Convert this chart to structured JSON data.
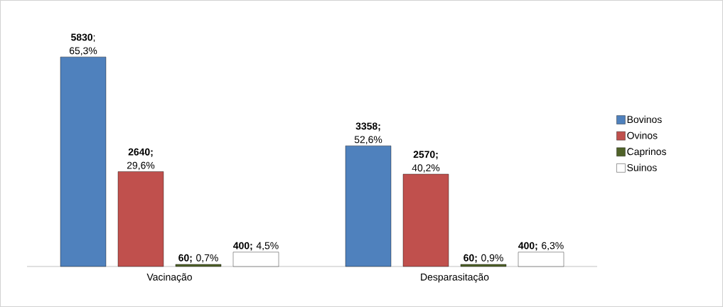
{
  "chart_data": {
    "type": "bar",
    "categories": [
      "Vacinação",
      "Desparasitação"
    ],
    "series": [
      {
        "name": "Bovinos",
        "color": "#4f81bd",
        "values": [
          5830,
          3358
        ],
        "value_labels": [
          "**5830**; 65,3%",
          "**3358;** 52,6%"
        ]
      },
      {
        "name": "Ovinos",
        "color": "#c0504d",
        "values": [
          2640,
          2570
        ],
        "value_labels": [
          "**2640;** 29,6%",
          "**2570;** 40,2%"
        ]
      },
      {
        "name": "Caprinos",
        "color": "#4f6228",
        "values": [
          60,
          60
        ],
        "value_labels": [
          "**60;** 0,7%",
          "**60;** 0,9%"
        ]
      },
      {
        "name": "Suinos",
        "color": "#ffffff",
        "values": [
          400,
          400
        ],
        "value_labels": [
          "**400;** 4,5%",
          "**400;** 6,3%"
        ]
      }
    ],
    "legend": "right",
    "grid": false
  }
}
